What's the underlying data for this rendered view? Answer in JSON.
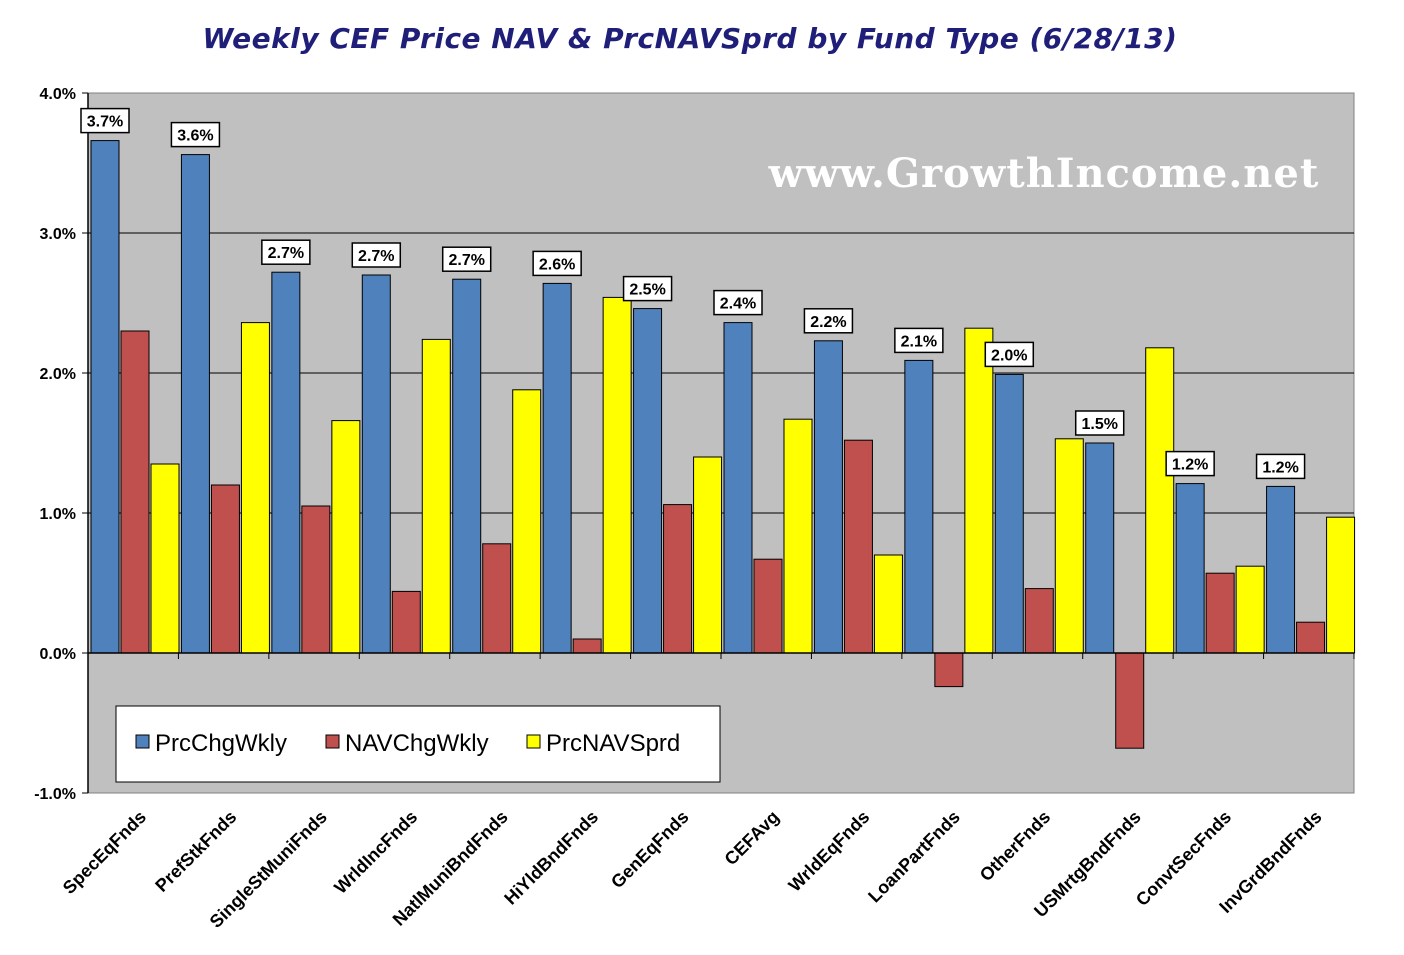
{
  "chart_data": {
    "type": "bar",
    "title": "Weekly CEF Price NAV & PrcNAVSprd by Fund Type  (6/28/13)",
    "watermark": "www.GrowthIncome.net",
    "categories": [
      "SpecEqFnds",
      "PrefStkFnds",
      "SingleStMuniFnds",
      "WrldIncFnds",
      "NatlMuniBndFnds",
      "HiYldBndFnds",
      "GenEqFnds",
      "CEFAvg",
      "WrldEqFnds",
      "LoanPartFnds",
      "OtherFnds",
      "USMrtgBndFnds",
      "ConvtSecFnds",
      "InvGrdBndFnds"
    ],
    "series": [
      {
        "name": "PrcChgWkly",
        "color": "#4f81bd",
        "values": [
          3.66,
          3.56,
          2.72,
          2.7,
          2.67,
          2.64,
          2.46,
          2.36,
          2.23,
          2.09,
          1.99,
          1.5,
          1.21,
          1.19
        ]
      },
      {
        "name": "NAVChgWkly",
        "color": "#c0504d",
        "values": [
          2.3,
          1.2,
          1.05,
          0.44,
          0.78,
          0.1,
          1.06,
          0.67,
          1.52,
          -0.24,
          0.46,
          -0.68,
          0.57,
          0.22
        ]
      },
      {
        "name": "PrcNAVSprd",
        "color": "#ffff00",
        "values": [
          1.35,
          2.36,
          1.66,
          2.24,
          1.88,
          2.54,
          1.4,
          1.67,
          0.7,
          2.32,
          1.53,
          2.18,
          0.62,
          0.97
        ]
      }
    ],
    "data_labels": [
      "3.7%",
      "3.6%",
      "2.7%",
      "2.7%",
      "2.7%",
      "2.6%",
      "2.5%",
      "2.4%",
      "2.2%",
      "2.1%",
      "2.0%",
      "1.5%",
      "1.2%",
      "1.2%"
    ],
    "ylim": [
      -1.0,
      4.0
    ],
    "yticks": [
      -1.0,
      0.0,
      1.0,
      2.0,
      3.0,
      4.0
    ],
    "ytick_labels": [
      "-1.0%",
      "0.0%",
      "1.0%",
      "2.0%",
      "3.0%",
      "4.0%"
    ],
    "xlabel": "",
    "ylabel": "",
    "grid": true,
    "legend_position": "bottom-left",
    "plot_background": "#c0c0c0"
  }
}
